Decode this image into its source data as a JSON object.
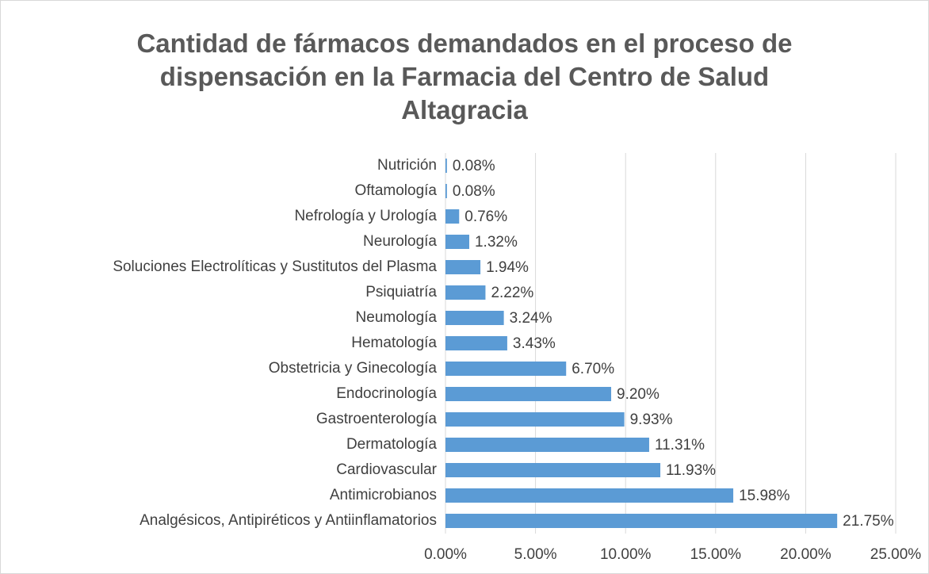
{
  "chart_data": {
    "type": "bar",
    "orientation": "horizontal",
    "title": "Cantidad de fármacos demandados en el proceso de dispensación en la Farmacia del Centro de Salud Altagracia",
    "categories": [
      "Nutrición",
      "Oftamología",
      "Nefrología y Urología",
      "Neurología",
      "Soluciones Electrolíticas y Sustitutos del Plasma",
      "Psiquiatría",
      "Neumología ",
      "Hematología",
      "Obstetricia y Ginecología",
      "Endocrinología",
      "Gastroenterología",
      "Dermatología",
      "Cardiovascular",
      "Antimicrobianos",
      "Analgésicos, Antipiréticos y Antiinflamatorios"
    ],
    "values": [
      0.08,
      0.08,
      0.76,
      1.32,
      1.94,
      2.22,
      3.24,
      3.43,
      6.7,
      9.2,
      9.93,
      11.31,
      11.93,
      15.98,
      21.75
    ],
    "value_labels": [
      "0.08%",
      "0.08%",
      "0.76%",
      "1.32%",
      "1.94%",
      "2.22%",
      "3.24%",
      "3.43%",
      "6.70%",
      "9.20%",
      "9.93%",
      "11.31%",
      "11.93%",
      "15.98%",
      "21.75%"
    ],
    "color": "#5b9bd5",
    "xlim": [
      0,
      25
    ],
    "xticks": [
      {
        "value": 0,
        "label": "0.00%"
      },
      {
        "value": 5,
        "label": "5.00%"
      },
      {
        "value": 10,
        "label": "10.00%"
      },
      {
        "value": 15,
        "label": "15.00%"
      },
      {
        "value": 20,
        "label": "20.00%"
      },
      {
        "value": 25,
        "label": "25.00%"
      }
    ],
    "grid": true
  }
}
